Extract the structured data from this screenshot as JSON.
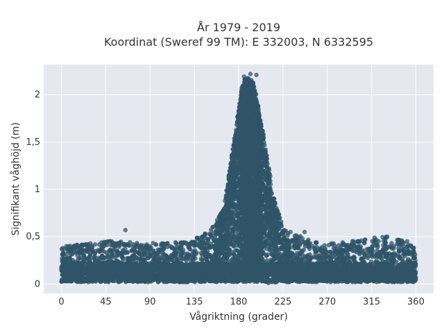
{
  "chart_data": {
    "type": "scatter",
    "title_line1": "År 1979 - 2019",
    "title_line2": "Koordinat (Sweref 99 TM): E 332003, N 6332595",
    "xlabel": "Vågriktning (grader)",
    "ylabel": "Signifikant våghöjd (m)",
    "xlim": [
      -18,
      378
    ],
    "ylim": [
      -0.1,
      2.32
    ],
    "xticks": [
      0,
      45,
      90,
      135,
      180,
      225,
      270,
      315,
      360
    ],
    "xtick_labels": [
      "0",
      "45",
      "90",
      "135",
      "180",
      "225",
      "270",
      "315",
      "360"
    ],
    "yticks": [
      0,
      0.5,
      1,
      1.5,
      2
    ],
    "ytick_labels": [
      "0",
      "0,5",
      "1",
      "1,5",
      "2"
    ],
    "grid": true,
    "legend": "none",
    "marker_color": "#2f5468",
    "background_color": "#e5e8f0",
    "envelope": {
      "direction": [
        0,
        45,
        90,
        135,
        150,
        165,
        175,
        185,
        195,
        205,
        215,
        225,
        240,
        255,
        270,
        300,
        330,
        360
      ],
      "max_height": [
        0.38,
        0.45,
        0.42,
        0.47,
        0.55,
        0.8,
        1.5,
        2.2,
        2.15,
        1.6,
        0.95,
        0.6,
        0.52,
        0.45,
        0.42,
        0.45,
        0.5,
        0.42
      ]
    },
    "outliers": [
      {
        "x": 65,
        "y": 0.57
      },
      {
        "x": 318,
        "y": 0.49
      },
      {
        "x": 330,
        "y": 0.5
      },
      {
        "x": 225,
        "y": 0.55
      },
      {
        "x": 247,
        "y": 0.55
      },
      {
        "x": 192,
        "y": 2.22
      },
      {
        "x": 198,
        "y": 2.21
      },
      {
        "x": 5,
        "y": 0.4
      },
      {
        "x": 25,
        "y": 0.42
      }
    ]
  }
}
